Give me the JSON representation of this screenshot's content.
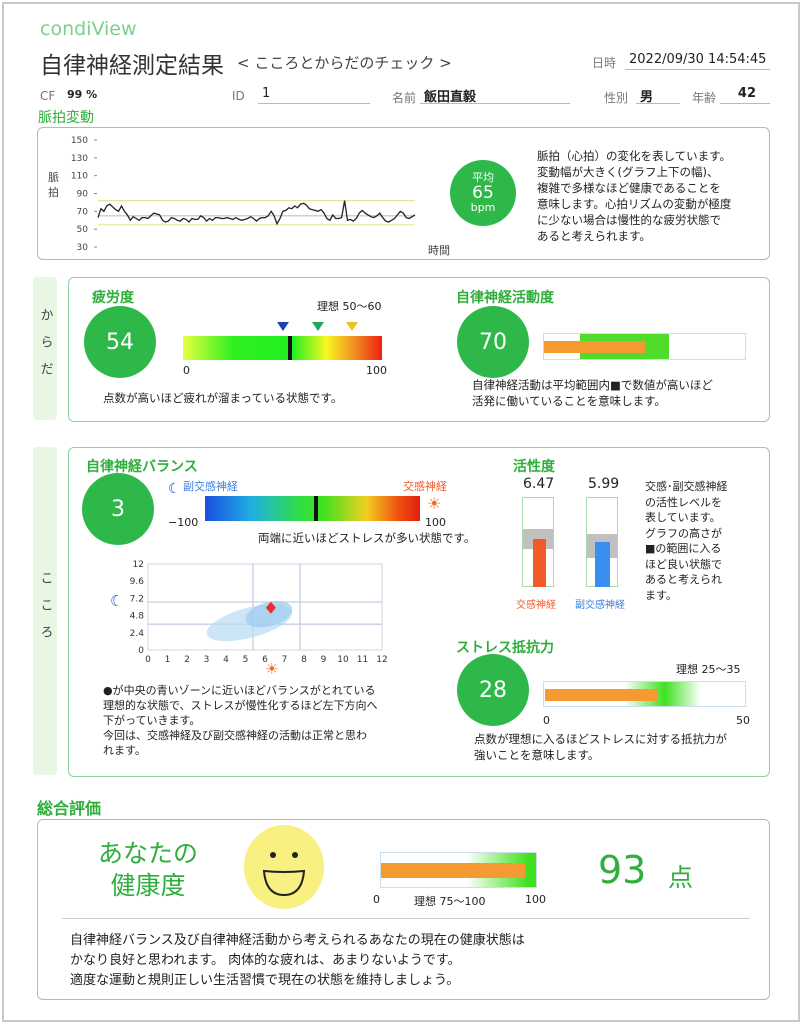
{
  "header": {
    "brand": "condiView",
    "title": "自律神経測定結果",
    "subtitle": "< こころとからだのチェック >",
    "datetime_label": "日時",
    "datetime": "2022/09/30 14:54:45",
    "cf_label": "CF",
    "cf_value": "99 %",
    "id_label": "ID",
    "id_value": "1",
    "name_label": "名前",
    "name_value": "飯田直毅",
    "sex_label": "性別",
    "sex_value": "男",
    "age_label": "年齢",
    "age_value": "42"
  },
  "pulse": {
    "section_title": "脈拍変動",
    "avg_label": "平均",
    "avg_value": "65",
    "avg_unit": "bpm",
    "description": [
      "脈拍（心拍）の変化を表しています。",
      "変動幅が大きく(グラフ上下の幅)、",
      "複雑で多様なほど健康であることを",
      "意味します。心拍リズムの変動が極度",
      "に少ない場合は慢性的な疲労状態で",
      "あると考えられます。"
    ]
  },
  "chart_data": [
    {
      "type": "line",
      "ylabel": "脈拍",
      "xlabel": "時間",
      "ylim": [
        30,
        150
      ],
      "yticks": [
        150,
        130,
        110,
        90,
        70,
        50,
        30
      ],
      "reference_lines": [
        {
          "value": 82,
          "color": "#e8e0a0"
        },
        {
          "value": 65,
          "color": "#b0c4dc"
        },
        {
          "value": 55,
          "color": "#e8e8a0"
        }
      ],
      "values": [
        63,
        73,
        70,
        76,
        78,
        75,
        72,
        70,
        76,
        70,
        66,
        60,
        64,
        62,
        60,
        63,
        63,
        62,
        65,
        68,
        67,
        66,
        60,
        58,
        59,
        63,
        62,
        60,
        59,
        62,
        61,
        58,
        62,
        61,
        61,
        65,
        63,
        59,
        62,
        60,
        63,
        63,
        62,
        62,
        63,
        62,
        61,
        63,
        61,
        60,
        61,
        62,
        64,
        62,
        59,
        62,
        63,
        63,
        65,
        70,
        65,
        56,
        62,
        70,
        71,
        74,
        73,
        76,
        74,
        78,
        79,
        77,
        73,
        72,
        71,
        70,
        72,
        68,
        62,
        60,
        66,
        62,
        62,
        63,
        82,
        60,
        61,
        59,
        62,
        68,
        71,
        68,
        66,
        64,
        63,
        65,
        68,
        63,
        59,
        58,
        60,
        62,
        66,
        70,
        68,
        63,
        62,
        64,
        66
      ]
    },
    {
      "type": "scatter",
      "xlim": [
        0,
        12
      ],
      "ylim": [
        0,
        12
      ],
      "xticks": [
        0,
        1,
        2,
        3,
        4,
        5,
        6,
        7,
        8,
        9,
        10,
        11,
        12
      ],
      "yticks": [
        "12",
        "9.6",
        "7.2",
        "4.8",
        "2.4",
        "0"
      ],
      "points": [
        {
          "x": 6.3,
          "y": 5.9,
          "color": "#e8312a"
        }
      ]
    }
  ],
  "body": {
    "tab_label": "からだ",
    "fatigue": {
      "title": "疲労度",
      "value": 54,
      "ideal": "理想 50〜60",
      "min": "0",
      "max": "100",
      "markers": [
        {
          "value": 50,
          "color": "#1f3fb8"
        },
        {
          "value": 68,
          "color": "#1fa85a"
        },
        {
          "value": 85,
          "color": "#f0c020"
        }
      ],
      "description": "点数が高いほど疲れが溜まっている状態です。"
    },
    "activity": {
      "title": "自律神経活動度",
      "value": 70,
      "normal_range": [
        18,
        62
      ],
      "description": [
        "自律神経活動は平均範囲内■で数値が高いほど",
        "活発に働いていることを意味します。"
      ]
    }
  },
  "mind": {
    "tab_label": "こころ",
    "balance": {
      "title": "自律神経バランス",
      "value": 3,
      "para_label": "副交感神経",
      "symp_label": "交感神経",
      "min": "−100",
      "max": "100",
      "description": "両端に近いほどストレスが多い状態です。",
      "note": [
        "●が中央の青いゾーンに近いほどバランスがとれている",
        "理想的な状態で、ストレスが慢性化するほど左下方向へ",
        "下がっていきます。",
        "今回は、交感神経及び副交感神経の活動は正常と思わ",
        "れます。"
      ]
    },
    "activeness": {
      "title": "活性度",
      "symp_value": "6.47",
      "para_value": "5.99",
      "symp_label": "交感神経",
      "para_label": "副交感神経",
      "description": [
        "交感･副交感神経",
        "の活性レベルを",
        "表しています。",
        "グラフの高さが",
        "■の範囲に入る",
        "ほど良い状態で",
        "あると考えられ",
        "ます。"
      ]
    },
    "stress": {
      "title": "ストレス抵抗力",
      "value": 28,
      "ideal": "理想 25〜35",
      "min": "0",
      "max": "50",
      "description": [
        "点数が理想に入るほどストレスに対する抵抗力が",
        "強いことを意味します。"
      ]
    }
  },
  "overall": {
    "title": "総合評価",
    "heading": [
      "あなたの",
      "健康度"
    ],
    "score": "93",
    "unit": "点",
    "bar_min": "0",
    "bar_ideal": "理想 75〜100",
    "bar_max": "100",
    "score_fraction": 0.93,
    "comment": [
      "自律神経バランス及び自律神経活動から考えられるあなたの現在の健康状態は",
      "かなり良好と思われます。 肉体的な疲れは、あまりないようです。",
      "適度な運動と規則正しい生活習慣で現在の状態を維持しましょう。"
    ]
  },
  "colors": {
    "accent": "#2fae3c",
    "orange": "#f59a30",
    "sympathetic": "#f05a28",
    "parasympathetic": "#3a8ef0"
  }
}
